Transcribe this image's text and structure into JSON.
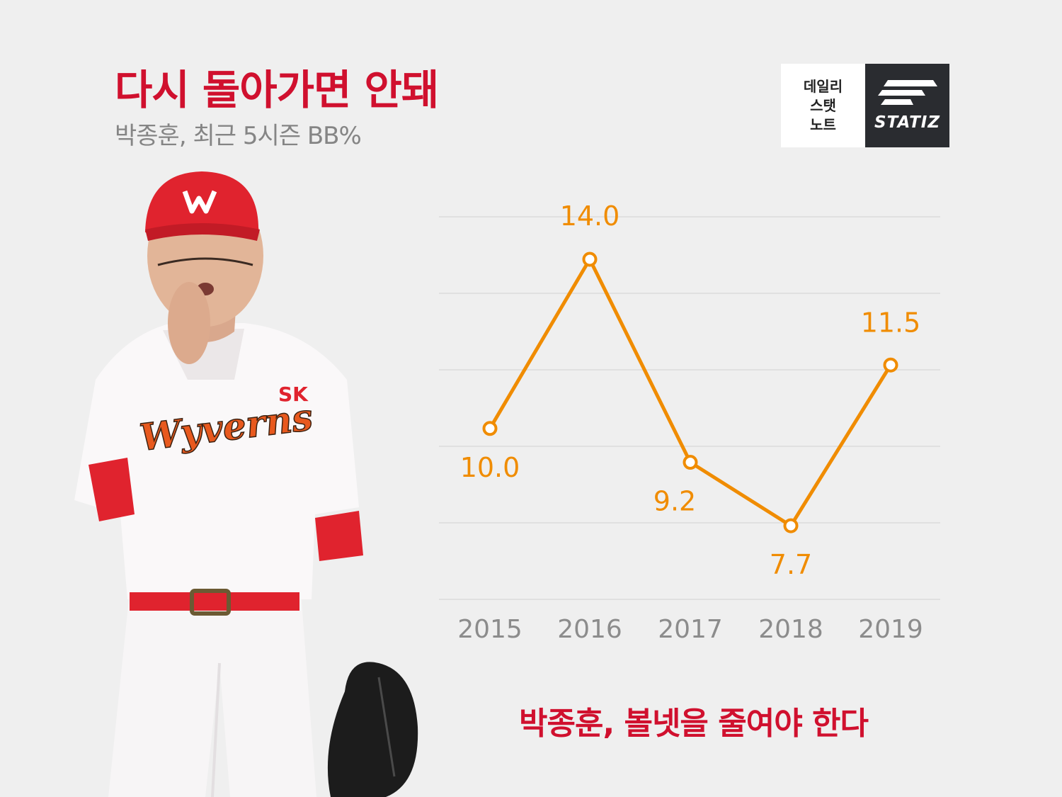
{
  "header": {
    "title": "다시 돌아가면 안돼",
    "subtitle": "박종훈, 최근 5시즌 BB%"
  },
  "logo": {
    "lines": [
      "데일리",
      "스탯",
      "노트"
    ],
    "brand": "STATIZ"
  },
  "player_jersey": {
    "team_mark": "SK",
    "team_name": "Wyverns"
  },
  "chart_data": {
    "type": "line",
    "categories": [
      "2015",
      "2016",
      "2017",
      "2018",
      "2019"
    ],
    "values": [
      10.0,
      14.0,
      9.2,
      7.7,
      11.5
    ],
    "value_labels": [
      "10.0",
      "14.0",
      "9.2",
      "7.7",
      "11.5"
    ],
    "grid": true,
    "gridlines": 6,
    "line_color": "#f08c00",
    "label_color": "#f08c00"
  },
  "caption": "박종훈, 볼넷을 줄여야 한다",
  "colors": {
    "accent_red": "#d0102e",
    "subtitle_gray": "#858585",
    "axis_gray": "#8c8c8c",
    "background": "#efefef"
  }
}
